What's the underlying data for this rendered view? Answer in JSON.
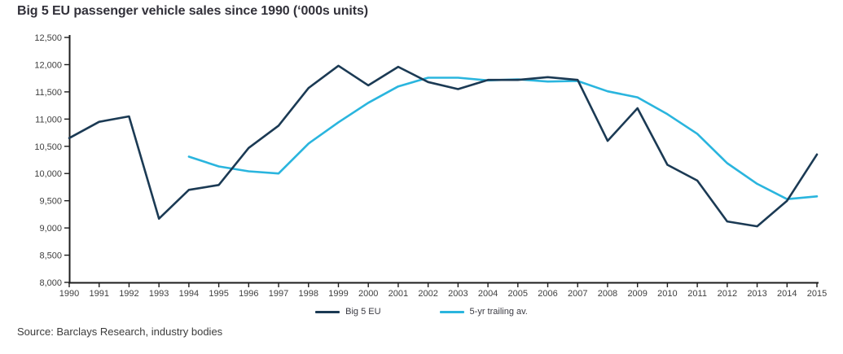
{
  "title": "Big 5 EU passenger vehicle sales since 1990 (‘000s units)",
  "source": "Source: Barclays Research, industry bodies",
  "axis_color": "#1d1d1d",
  "tick_label_color": "#3f3f3f",
  "chart_data": {
    "type": "line",
    "title": "Big 5 EU passenger vehicle sales since 1990 (‘000s units)",
    "xlabel": "",
    "ylabel": "",
    "grid": false,
    "legend_position": "bottom-center",
    "ylim": [
      8000,
      12500
    ],
    "ytick_step": 500,
    "ytick_labels": [
      "8,000",
      "8,500",
      "9,000",
      "9,500",
      "10,000",
      "10,500",
      "11,000",
      "11,500",
      "12,000",
      "12,500"
    ],
    "x": [
      1990,
      1991,
      1992,
      1993,
      1994,
      1995,
      1996,
      1997,
      1998,
      1999,
      2000,
      2001,
      2002,
      2003,
      2004,
      2005,
      2006,
      2007,
      2008,
      2009,
      2010,
      2011,
      2012,
      2013,
      2014,
      2015
    ],
    "series": [
      {
        "name": "Big 5 EU",
        "color": "#1b3a54",
        "values": [
          10650,
          10950,
          11050,
          9170,
          9700,
          9790,
          10470,
          10880,
          11570,
          11980,
          11620,
          11960,
          11680,
          11550,
          11720,
          11720,
          11770,
          11720,
          10600,
          11200,
          10160,
          9870,
          9120,
          9030,
          9500,
          10350
        ]
      },
      {
        "name": "5-yr trailing av.",
        "color": "#2ab5de",
        "values": [
          null,
          null,
          null,
          null,
          10310,
          10130,
          10040,
          10000,
          10550,
          10940,
          11300,
          11600,
          11760,
          11760,
          11710,
          11730,
          11690,
          11700,
          11510,
          11400,
          11090,
          10730,
          10190,
          9810,
          9530,
          9580
        ]
      }
    ]
  }
}
